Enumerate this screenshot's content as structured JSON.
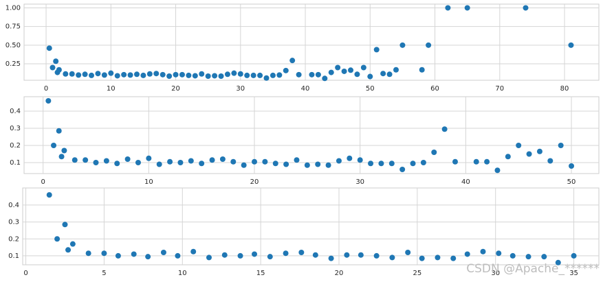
{
  "chart_data": [
    {
      "type": "scatter",
      "color": "#1f77b4",
      "grid": true,
      "x": [
        0.5,
        1,
        1.5,
        1.75,
        2,
        3,
        4,
        5,
        6,
        7,
        8,
        9,
        10,
        11,
        12,
        13,
        14,
        15,
        16,
        17,
        18,
        19,
        20,
        21,
        22,
        23,
        24,
        25,
        26,
        27,
        28,
        29,
        30,
        31,
        32,
        33,
        34,
        35,
        36,
        37,
        38,
        39,
        41,
        42,
        43,
        44,
        45,
        46,
        47,
        48,
        49,
        50,
        51,
        52,
        53,
        54,
        55,
        58,
        59,
        62,
        65,
        74,
        81
      ],
      "values": [
        0.46,
        0.2,
        0.285,
        0.135,
        0.17,
        0.115,
        0.115,
        0.1,
        0.11,
        0.095,
        0.12,
        0.1,
        0.125,
        0.09,
        0.105,
        0.1,
        0.11,
        0.095,
        0.115,
        0.12,
        0.105,
        0.085,
        0.105,
        0.105,
        0.095,
        0.09,
        0.115,
        0.085,
        0.09,
        0.085,
        0.11,
        0.125,
        0.115,
        0.095,
        0.095,
        0.095,
        0.06,
        0.095,
        0.1,
        0.16,
        0.295,
        0.105,
        0.105,
        0.105,
        0.055,
        0.135,
        0.2,
        0.15,
        0.165,
        0.11,
        0.2,
        0.08,
        0.44,
        0.12,
        0.11,
        0.17,
        0.5,
        0.17,
        0.5,
        1.0,
        1.0,
        1.0,
        0.5
      ],
      "xlim": [
        -3.4,
        85.3
      ],
      "ylim": [
        0.03,
        1.05
      ],
      "xticks": [
        0,
        10,
        20,
        30,
        40,
        50,
        60,
        70,
        80
      ],
      "yticks": [
        {
          "value": 0.25,
          "label": "0.25"
        },
        {
          "value": 0.5,
          "label": "0.50"
        },
        {
          "value": 0.75,
          "label": "0.75"
        },
        {
          "value": 1,
          "label": "1.00"
        }
      ]
    },
    {
      "type": "scatter",
      "color": "#1f77b4",
      "grid": true,
      "x": [
        0.5,
        1,
        1.5,
        1.75,
        2,
        3,
        4,
        5,
        6,
        7,
        8,
        9,
        10,
        11,
        12,
        13,
        14,
        15,
        16,
        17,
        18,
        19,
        20,
        21,
        22,
        23,
        24,
        25,
        26,
        27,
        28,
        29,
        30,
        31,
        32,
        33,
        34,
        35,
        36,
        37,
        38,
        39,
        41,
        42,
        43,
        44,
        45,
        46,
        47,
        48,
        49,
        50
      ],
      "values": [
        0.46,
        0.2,
        0.285,
        0.135,
        0.17,
        0.115,
        0.115,
        0.1,
        0.11,
        0.095,
        0.12,
        0.1,
        0.125,
        0.09,
        0.105,
        0.1,
        0.11,
        0.095,
        0.115,
        0.12,
        0.105,
        0.085,
        0.105,
        0.105,
        0.095,
        0.09,
        0.115,
        0.085,
        0.09,
        0.085,
        0.11,
        0.125,
        0.115,
        0.095,
        0.095,
        0.095,
        0.06,
        0.095,
        0.1,
        0.16,
        0.295,
        0.105,
        0.105,
        0.105,
        0.055,
        0.135,
        0.2,
        0.15,
        0.165,
        0.11,
        0.2,
        0.08
      ],
      "xlim": [
        -1.8,
        52.6
      ],
      "ylim": [
        0.036,
        0.484
      ],
      "xticks": [
        0,
        10,
        20,
        30,
        40,
        50
      ],
      "yticks": [
        0.1,
        0.2,
        0.3,
        0.4
      ]
    },
    {
      "type": "scatter",
      "color": "#1f77b4",
      "grid": true,
      "x": [
        1.5,
        2,
        2.5,
        2.7,
        3,
        4,
        5,
        5.9,
        6.9,
        7.8,
        8.8,
        9.7,
        10.7,
        11.7,
        12.7,
        13.7,
        14.6,
        15.6,
        16.6,
        17.6,
        18.5,
        19.5,
        20.5,
        21.4,
        22.4,
        23.4,
        24.4,
        25.3,
        26.3,
        27.3,
        28.2,
        29.2,
        30.2,
        31.1,
        32.1,
        33.1,
        34,
        35
      ],
      "values": [
        0.46,
        0.2,
        0.285,
        0.135,
        0.17,
        0.115,
        0.115,
        0.1,
        0.11,
        0.095,
        0.12,
        0.1,
        0.125,
        0.09,
        0.105,
        0.1,
        0.11,
        0.095,
        0.115,
        0.12,
        0.105,
        0.085,
        0.105,
        0.105,
        0.1,
        0.09,
        0.12,
        0.085,
        0.09,
        0.085,
        0.11,
        0.125,
        0.115,
        0.1,
        0.095,
        0.095,
        0.06,
        0.1
      ],
      "xlim": [
        -0.2,
        36.6
      ],
      "ylim": [
        0.047,
        0.501
      ],
      "xticks": [
        0,
        5,
        10,
        15,
        20,
        25,
        30,
        35
      ],
      "yticks": [
        0.1,
        0.2,
        0.3,
        0.4
      ],
      "annotation": "CSDN @Apache_******"
    }
  ]
}
